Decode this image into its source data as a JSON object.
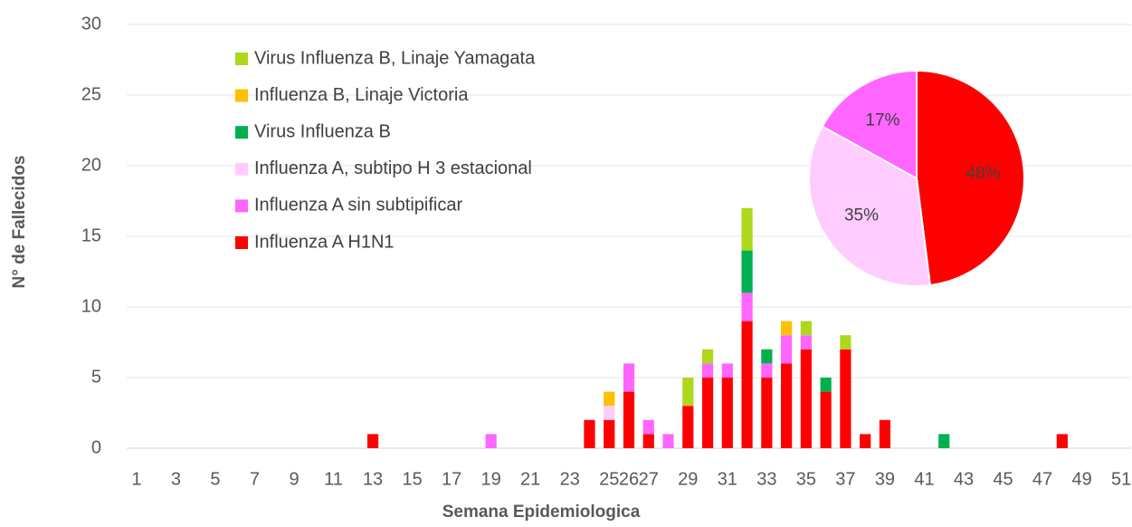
{
  "chart_data": [
    {
      "type": "stacked-bar",
      "x_label": "Semana Epidemiologica",
      "y_label": "N° de Fallecidos",
      "categories": [
        1,
        null,
        3,
        null,
        5,
        null,
        7,
        null,
        9,
        null,
        11,
        null,
        13,
        null,
        15,
        null,
        17,
        null,
        19,
        null,
        21,
        null,
        23,
        null,
        25,
        26,
        27,
        null,
        29,
        null,
        31,
        null,
        33,
        null,
        35,
        null,
        37,
        null,
        39,
        null,
        41,
        null,
        43,
        null,
        45,
        null,
        47,
        null,
        49,
        null,
        51
      ],
      "ylim": [
        0,
        30
      ],
      "yticks": [
        0,
        5,
        10,
        15,
        20,
        25,
        30
      ],
      "grid": true,
      "legend": "upper left",
      "series": [
        {
          "name": "Influenza A H1N1",
          "color": "#ff0000",
          "values": [
            0,
            0,
            0,
            0,
            0,
            0,
            0,
            0,
            0,
            0,
            0,
            0,
            1,
            0,
            0,
            0,
            0,
            0,
            0,
            0,
            0,
            0,
            0,
            2,
            2,
            4,
            1,
            0,
            3,
            5,
            5,
            9,
            5,
            6,
            7,
            4,
            7,
            1,
            2,
            0,
            0,
            0,
            0,
            0,
            0,
            0,
            0,
            1,
            0,
            0,
            0
          ]
        },
        {
          "name": "Influenza A sin subtipificar",
          "color": "#ff66ff",
          "values": [
            0,
            0,
            0,
            0,
            0,
            0,
            0,
            0,
            0,
            0,
            0,
            0,
            0,
            0,
            0,
            0,
            0,
            0,
            1,
            0,
            0,
            0,
            0,
            0,
            0,
            2,
            1,
            1,
            0,
            1,
            1,
            2,
            1,
            2,
            1,
            0,
            0,
            0,
            0,
            0,
            0,
            0,
            0,
            0,
            0,
            0,
            0,
            0,
            0,
            0,
            0
          ]
        },
        {
          "name": "Influenza A, subtipo H 3 estacional",
          "color": "#ffccff",
          "values": [
            0,
            0,
            0,
            0,
            0,
            0,
            0,
            0,
            0,
            0,
            0,
            0,
            0,
            0,
            0,
            0,
            0,
            0,
            0,
            0,
            0,
            0,
            0,
            0,
            1,
            0,
            0,
            0,
            0,
            0,
            0,
            0,
            0,
            0,
            0,
            0,
            0,
            0,
            0,
            0,
            0,
            0,
            0,
            0,
            0,
            0,
            0,
            0,
            0,
            0,
            0
          ]
        },
        {
          "name": "Virus Influenza B",
          "color": "#00b050",
          "values": [
            0,
            0,
            0,
            0,
            0,
            0,
            0,
            0,
            0,
            0,
            0,
            0,
            0,
            0,
            0,
            0,
            0,
            0,
            0,
            0,
            0,
            0,
            0,
            0,
            0,
            0,
            0,
            0,
            0,
            0,
            0,
            3,
            1,
            0,
            0,
            1,
            0,
            0,
            0,
            0,
            0,
            1,
            0,
            0,
            0,
            0,
            0,
            0,
            0,
            0,
            0
          ]
        },
        {
          "name": "Influenza B, Linaje Victoria",
          "color": "#ffc000",
          "values": [
            0,
            0,
            0,
            0,
            0,
            0,
            0,
            0,
            0,
            0,
            0,
            0,
            0,
            0,
            0,
            0,
            0,
            0,
            0,
            0,
            0,
            0,
            0,
            0,
            1,
            0,
            0,
            0,
            0,
            0,
            0,
            0,
            0,
            1,
            0,
            0,
            0,
            0,
            0,
            0,
            0,
            0,
            0,
            0,
            0,
            0,
            0,
            0,
            0,
            0,
            0
          ]
        },
        {
          "name": "Virus Influenza B, Linaje Yamagata",
          "color": "#add81c",
          "values": [
            0,
            0,
            0,
            0,
            0,
            0,
            0,
            0,
            0,
            0,
            0,
            0,
            0,
            0,
            0,
            0,
            0,
            0,
            0,
            0,
            0,
            0,
            0,
            0,
            0,
            0,
            0,
            0,
            2,
            1,
            0,
            3,
            0,
            0,
            1,
            0,
            1,
            0,
            0,
            0,
            0,
            0,
            0,
            0,
            0,
            0,
            0,
            0,
            0,
            0,
            0
          ]
        }
      ]
    },
    {
      "type": "pie",
      "values": [
        48,
        35,
        17
      ],
      "value_labels": [
        "48%",
        "35%",
        "17%"
      ],
      "colors": [
        "#ff0000",
        "#ffccff",
        "#ff66ff"
      ]
    }
  ]
}
